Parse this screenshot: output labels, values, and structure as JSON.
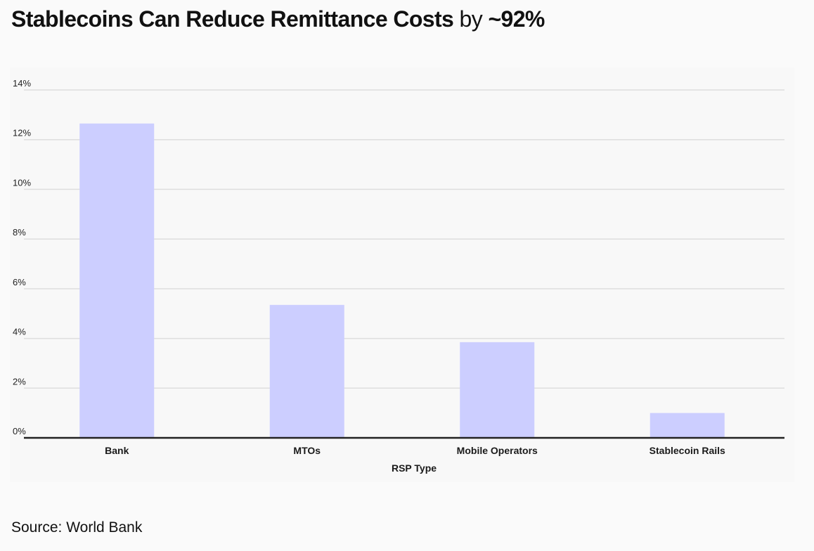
{
  "header": {
    "title_bold": "Stablecoins Can Reduce Remittance Costs",
    "title_mid": "by",
    "title_highlight": "~92%"
  },
  "footer": {
    "source": "Source: World Bank"
  },
  "colors": {
    "bar": "#ccceff",
    "grid": "#dedede",
    "baseline": "#222222"
  },
  "chart_data": {
    "type": "bar",
    "title": "Stablecoins Can Reduce Remittance Costs by ~92%",
    "xlabel": "RSP Type",
    "ylabel": "",
    "categories": [
      "Bank",
      "MTOs",
      "Mobile Operators",
      "Stablecoin Rails"
    ],
    "values": [
      12.65,
      5.35,
      3.85,
      1.0
    ],
    "value_unit": "%",
    "ylim": [
      0,
      14
    ],
    "yticks": [
      0,
      2,
      4,
      6,
      8,
      10,
      12,
      14
    ],
    "ytick_labels": [
      "0%",
      "2%",
      "4%",
      "6%",
      "8%",
      "10%",
      "12%",
      "14%"
    ],
    "grid": true,
    "legend": "none"
  }
}
